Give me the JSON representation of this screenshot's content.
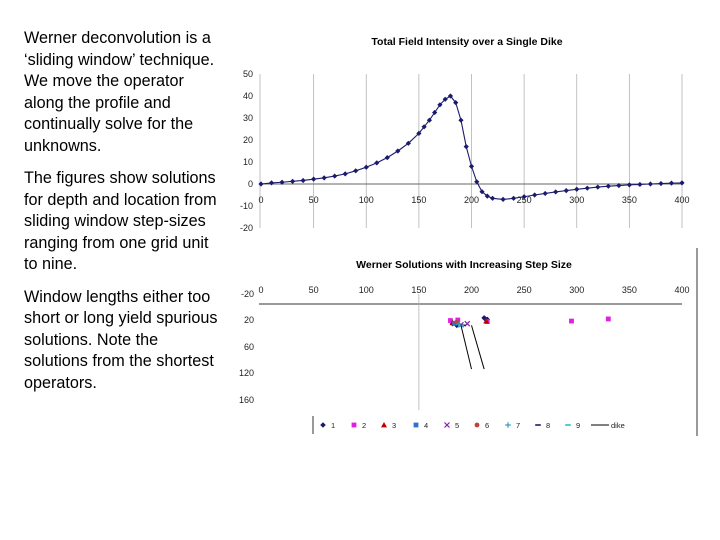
{
  "text": {
    "p1": "Werner deconvolution is a ‘sliding window’ technique. We move the operator along the profile and continually solve for the unknowns.",
    "p2": "The figures show solutions for depth and location from sliding window step-sizes ranging from one grid unit to nine.",
    "p3": "Window lengths either too short or long yield spurious solutions. Note the solutions from the shortest operators."
  },
  "colors": {
    "curve": "#1a1a6e",
    "grid": "#b3b3b3"
  },
  "chart_data": [
    {
      "type": "line",
      "title": "Total Field Intensity over a Single Dike",
      "xlim": [
        0,
        400
      ],
      "ylim": [
        -20,
        50
      ],
      "x_ticks": [
        "0",
        "50",
        "100",
        "150",
        "200",
        "250",
        "300",
        "350",
        "400"
      ],
      "y_ticks": [
        "50",
        "40",
        "30",
        "20",
        "10",
        "0",
        "-10",
        "-20"
      ],
      "grid": "vertical",
      "series": [
        {
          "x": [
            0,
            10,
            20,
            30,
            40,
            50,
            60,
            70,
            80,
            90,
            100,
            110,
            120,
            130,
            140,
            150,
            155,
            160,
            165,
            170,
            175,
            180,
            185,
            190,
            195,
            200,
            205,
            210,
            215,
            220,
            230,
            240,
            250,
            260,
            270,
            280,
            290,
            300,
            310,
            320,
            330,
            340,
            350,
            360,
            370,
            380,
            390,
            400
          ],
          "y": [
            0,
            0.5,
            0.8,
            1.2,
            1.6,
            2.2,
            2.8,
            3.6,
            4.6,
            6,
            7.6,
            9.6,
            12,
            15,
            18.5,
            23,
            26,
            29,
            32.5,
            36,
            38.5,
            40,
            37,
            29,
            17,
            8,
            1,
            -3.5,
            -5.5,
            -6.5,
            -7,
            -6.5,
            -5.8,
            -5,
            -4.3,
            -3.6,
            -3,
            -2.4,
            -1.9,
            -1.4,
            -1,
            -0.7,
            -0.4,
            -0.2,
            0,
            0.2,
            0.4,
            0.5
          ]
        }
      ]
    },
    {
      "type": "scatter",
      "title": "Werner Solutions with Increasing Step Size",
      "xlim": [
        0,
        400
      ],
      "ylim": [
        -20,
        160
      ],
      "x_ticks": [
        "0",
        "50",
        "100",
        "150",
        "200",
        "250",
        "300",
        "350",
        "400"
      ],
      "y_ticks": [
        "-20",
        "20",
        "60",
        "120",
        "160"
      ],
      "legend_position": "bottom",
      "series": [
        {
          "name": "1",
          "color": "#1a1a6e",
          "marker": "diamond",
          "points": [
            [
              182,
              17
            ],
            [
              186,
              20
            ],
            [
              212,
              6
            ],
            [
              213,
              8
            ],
            [
              215,
              9
            ]
          ]
        },
        {
          "name": "2",
          "color": "#e020e0",
          "marker": "square",
          "points": [
            [
              180,
              11
            ],
            [
              187,
              10
            ],
            [
              215,
              13
            ],
            [
              295,
              12
            ],
            [
              330,
              8
            ]
          ]
        },
        {
          "name": "3",
          "color": "#c00000",
          "marker": "triangle",
          "points": [
            [
              182,
              15
            ],
            [
              214,
              12
            ]
          ]
        },
        {
          "name": "4",
          "color": "#3070d0",
          "marker": "square",
          "points": [
            [
              184,
              16
            ]
          ]
        },
        {
          "name": "5",
          "color": "#8020a0",
          "marker": "x",
          "points": [
            [
              190,
              19
            ],
            [
              196,
              17
            ]
          ]
        },
        {
          "name": "6",
          "color": "#c04040",
          "marker": "circle",
          "points": [
            [
              186,
              14
            ]
          ]
        },
        {
          "name": "7",
          "color": "#30a0c0",
          "marker": "plus",
          "points": [
            [
              188,
              18
            ]
          ]
        },
        {
          "name": "8",
          "color": "#1a1a6e",
          "marker": "dash",
          "points": [
            [
              192,
              20
            ]
          ]
        },
        {
          "name": "9",
          "color": "#30c0c0",
          "marker": "dash",
          "points": [
            [
              190,
              21
            ]
          ]
        },
        {
          "name": "dike",
          "color": "#000000",
          "marker": "line",
          "lines": [
            [
              [
                190,
                20
              ],
              [
                200,
                102
              ]
            ],
            [
              [
                200,
                20
              ],
              [
                212,
                102
              ]
            ]
          ]
        }
      ]
    }
  ]
}
